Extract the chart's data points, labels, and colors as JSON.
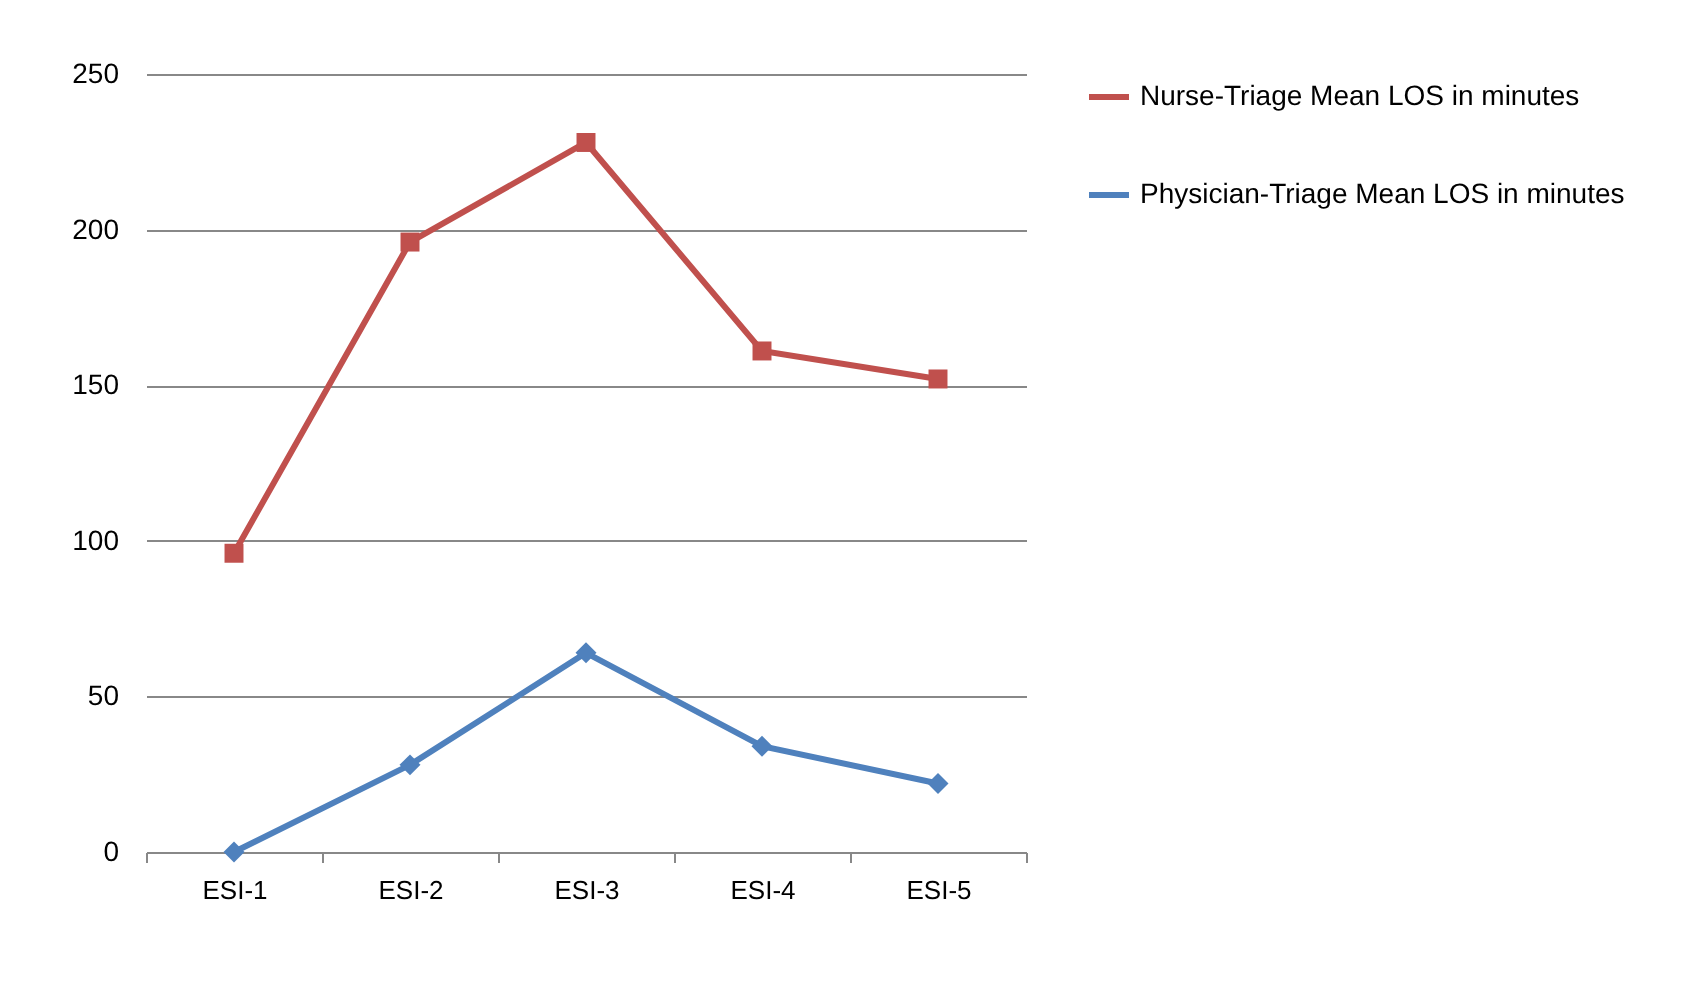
{
  "chart_data": {
    "type": "line",
    "categories": [
      "ESI-1",
      "ESI-2",
      "ESI-3",
      "ESI-4",
      "ESI-5"
    ],
    "series": [
      {
        "name": "Nurse-Triage Mean LOS in minutes",
        "color": "#c0504d",
        "marker": "square",
        "values": [
          96,
          196,
          228,
          161,
          152
        ]
      },
      {
        "name": "Physician-Triage Mean LOS in minutes",
        "color": "#4f81bd",
        "marker": "diamond",
        "values": [
          0,
          28,
          64,
          34,
          22
        ]
      }
    ],
    "ylim": [
      0,
      250
    ],
    "yticks": [
      0,
      50,
      100,
      150,
      200,
      250
    ],
    "grid": "y",
    "legend": "right"
  }
}
